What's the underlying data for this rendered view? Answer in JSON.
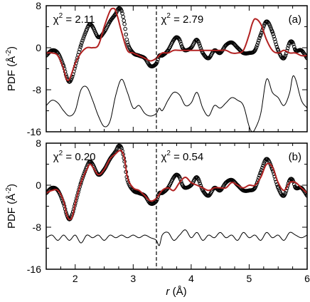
{
  "chart_data": [
    {
      "type": "line",
      "panel_label": "(a)",
      "xlabel": "r (Å)",
      "xlabel_italic": "r",
      "xlabel_unit": "(Å)",
      "ylabel": "PDF (Å⁻²)",
      "ylabel_main": "PDF (Å",
      "ylabel_sup": "-2",
      "ylabel_end": ")",
      "xlim": [
        1.5,
        6.0
      ],
      "ylim": [
        -16,
        8
      ],
      "xticks": [
        "2",
        "3",
        "4",
        "5",
        "6"
      ],
      "yticks": [
        "8",
        "0",
        "-8",
        "-16"
      ],
      "divider_x": 3.4,
      "annotations": [
        {
          "chi_label": "χ",
          "sup": "2",
          "value": " = 2.11",
          "x": 1.62
        },
        {
          "chi_label": "χ",
          "sup": "2",
          "value": " = 2.79",
          "x": 3.48
        }
      ],
      "grid": false,
      "series": [
        {
          "role": "data",
          "style": "open-circles",
          "color": "#000000",
          "x": [
            1.5,
            1.6,
            1.7,
            1.8,
            1.85,
            1.9,
            1.95,
            2.0,
            2.1,
            2.2,
            2.25,
            2.3,
            2.4,
            2.5,
            2.6,
            2.7,
            2.75,
            2.8,
            2.85,
            2.9,
            3.0,
            3.1,
            3.2,
            3.3,
            3.4,
            3.45,
            3.5,
            3.6,
            3.7,
            3.75,
            3.8,
            3.85,
            3.9,
            4.0,
            4.1,
            4.2,
            4.3,
            4.4,
            4.5,
            4.6,
            4.7,
            4.8,
            4.9,
            5.0,
            5.1,
            5.2,
            5.3,
            5.4,
            5.5,
            5.6,
            5.7,
            5.75,
            5.8,
            5.9,
            6.0
          ],
          "y": [
            -1.5,
            -0.5,
            -1.0,
            -3.5,
            -5.5,
            -6.5,
            -5.5,
            -3.5,
            0.5,
            3.5,
            4.5,
            4.0,
            2.0,
            3.0,
            5.0,
            6.5,
            7.5,
            7.0,
            4.5,
            1.0,
            -1.0,
            -1.5,
            -2.0,
            -3.5,
            -3.0,
            -1.5,
            -1.5,
            -0.5,
            1.5,
            2.0,
            1.5,
            0.0,
            -0.5,
            0.0,
            1.5,
            -1.0,
            -2.0,
            -0.5,
            -1.0,
            0.5,
            1.0,
            0.0,
            -1.0,
            -1.0,
            -0.5,
            2.5,
            5.0,
            3.0,
            -0.5,
            -2.0,
            1.0,
            1.0,
            -0.5,
            -0.5,
            -2.0
          ]
        },
        {
          "role": "fit",
          "style": "line",
          "color": "#b22222",
          "x": [
            1.5,
            1.6,
            1.7,
            1.8,
            1.85,
            1.9,
            2.0,
            2.1,
            2.2,
            2.3,
            2.4,
            2.5,
            2.6,
            2.65,
            2.7,
            2.8,
            2.9,
            3.0,
            3.1,
            3.2,
            3.3,
            3.4,
            3.5,
            3.6,
            3.7,
            3.8,
            3.9,
            4.0,
            4.1,
            4.2,
            4.3,
            4.4,
            4.5,
            4.6,
            4.7,
            4.8,
            4.9,
            5.0,
            5.05,
            5.1,
            5.2,
            5.3,
            5.4,
            5.5,
            5.6,
            5.7,
            5.8,
            5.9,
            6.0
          ],
          "y": [
            -1.0,
            -1.0,
            -1.5,
            -4.0,
            -6.0,
            -6.0,
            -3.0,
            -1.0,
            0.0,
            0.0,
            0.5,
            4.0,
            7.0,
            7.5,
            7.0,
            3.0,
            -0.5,
            -1.0,
            -1.5,
            -2.0,
            -2.5,
            -2.0,
            -1.0,
            -1.0,
            -0.5,
            -0.5,
            -0.5,
            -0.5,
            -0.5,
            -0.5,
            -0.5,
            -0.5,
            -0.5,
            -0.5,
            -1.0,
            -1.0,
            -0.5,
            2.5,
            4.5,
            5.5,
            4.5,
            1.5,
            -0.5,
            -1.0,
            -0.5,
            -1.0,
            -1.0,
            -1.5,
            -1.5
          ]
        },
        {
          "role": "difference",
          "style": "line",
          "color": "#000000",
          "x": [
            1.5,
            1.6,
            1.7,
            1.8,
            1.9,
            2.0,
            2.1,
            2.2,
            2.3,
            2.4,
            2.5,
            2.6,
            2.7,
            2.8,
            2.9,
            3.0,
            3.1,
            3.2,
            3.3,
            3.4,
            3.45,
            3.5,
            3.6,
            3.7,
            3.8,
            3.9,
            4.0,
            4.1,
            4.2,
            4.3,
            4.4,
            4.5,
            4.6,
            4.7,
            4.8,
            4.9,
            5.0,
            5.05,
            5.1,
            5.2,
            5.3,
            5.4,
            5.5,
            5.6,
            5.7,
            5.75,
            5.8,
            5.9,
            6.0
          ],
          "y": [
            -11.0,
            -10.0,
            -10.5,
            -12.0,
            -13.0,
            -12.0,
            -8.0,
            -7.5,
            -10.0,
            -13.0,
            -15.0,
            -14.0,
            -9.0,
            -6.0,
            -8.5,
            -11.5,
            -11.0,
            -12.5,
            -13.0,
            -12.5,
            -11.5,
            -12.0,
            -10.0,
            -8.5,
            -9.0,
            -11.0,
            -10.5,
            -8.5,
            -11.5,
            -13.0,
            -11.0,
            -11.5,
            -10.5,
            -9.5,
            -10.0,
            -11.0,
            -15.0,
            -16.0,
            -15.5,
            -12.5,
            -6.0,
            -8.5,
            -9.5,
            -11.0,
            -8.5,
            -5.5,
            -6.0,
            -10.0,
            -11.5
          ]
        }
      ]
    },
    {
      "type": "line",
      "panel_label": "(b)",
      "xlabel": "r (Å)",
      "ylabel": "PDF (Å⁻²)",
      "ylabel_main": "PDF (Å",
      "ylabel_sup": "-2",
      "ylabel_end": ")",
      "xlim": [
        1.5,
        6.0
      ],
      "ylim": [
        -16,
        8
      ],
      "xticks": [
        "2",
        "3",
        "4",
        "5",
        "6"
      ],
      "yticks": [
        "8",
        "0",
        "-8",
        "-16"
      ],
      "divider_x": 3.4,
      "annotations": [
        {
          "chi_label": "χ",
          "sup": "2",
          "value": " = 0.20",
          "x": 1.62
        },
        {
          "chi_label": "χ",
          "sup": "2",
          "value": " = 0.54",
          "x": 3.48
        }
      ],
      "grid": false,
      "series": [
        {
          "role": "data",
          "style": "open-circles",
          "color": "#000000",
          "x": [
            1.5,
            1.6,
            1.7,
            1.8,
            1.85,
            1.9,
            1.95,
            2.0,
            2.1,
            2.2,
            2.25,
            2.3,
            2.4,
            2.5,
            2.6,
            2.7,
            2.75,
            2.8,
            2.85,
            2.9,
            3.0,
            3.1,
            3.2,
            3.3,
            3.4,
            3.45,
            3.5,
            3.6,
            3.7,
            3.75,
            3.8,
            3.85,
            3.9,
            4.0,
            4.1,
            4.2,
            4.3,
            4.4,
            4.5,
            4.6,
            4.7,
            4.8,
            4.9,
            5.0,
            5.1,
            5.2,
            5.3,
            5.4,
            5.5,
            5.6,
            5.7,
            5.75,
            5.8,
            5.9,
            6.0
          ],
          "y": [
            -1.5,
            -0.5,
            -1.0,
            -3.5,
            -5.5,
            -6.5,
            -5.5,
            -3.5,
            0.5,
            3.5,
            4.5,
            4.0,
            2.0,
            3.0,
            5.0,
            6.5,
            7.5,
            7.0,
            4.5,
            1.0,
            -1.0,
            -1.5,
            -2.0,
            -3.5,
            -3.0,
            -1.5,
            -1.5,
            -0.5,
            1.5,
            2.0,
            1.5,
            0.0,
            -0.5,
            0.0,
            1.5,
            -1.0,
            -2.0,
            -0.5,
            -1.0,
            0.5,
            1.0,
            0.0,
            -1.0,
            -1.0,
            -0.5,
            2.5,
            5.0,
            3.0,
            -0.5,
            -2.0,
            1.0,
            1.0,
            -0.5,
            -0.5,
            -2.0
          ]
        },
        {
          "role": "fit",
          "style": "line",
          "color": "#b22222",
          "x": [
            1.5,
            1.6,
            1.7,
            1.8,
            1.85,
            1.9,
            1.95,
            2.0,
            2.1,
            2.2,
            2.25,
            2.3,
            2.4,
            2.5,
            2.6,
            2.7,
            2.75,
            2.8,
            2.85,
            2.9,
            3.0,
            3.1,
            3.2,
            3.3,
            3.4,
            3.5,
            3.6,
            3.7,
            3.8,
            3.9,
            4.0,
            4.1,
            4.2,
            4.3,
            4.4,
            4.5,
            4.6,
            4.7,
            4.8,
            4.9,
            5.0,
            5.1,
            5.2,
            5.3,
            5.4,
            5.5,
            5.6,
            5.7,
            5.8,
            5.9,
            6.0
          ],
          "y": [
            -1.5,
            -1.0,
            -1.0,
            -3.0,
            -5.5,
            -6.5,
            -6.0,
            -3.5,
            0.5,
            3.0,
            4.0,
            3.5,
            2.0,
            3.0,
            5.0,
            6.0,
            6.5,
            6.5,
            5.0,
            1.5,
            -0.5,
            -1.0,
            -2.0,
            -3.0,
            -2.5,
            -1.0,
            -0.5,
            -1.0,
            0.5,
            1.5,
            0.5,
            0.0,
            -0.5,
            -1.0,
            -0.5,
            -0.5,
            -0.5,
            0.5,
            0.0,
            -0.5,
            0.0,
            0.0,
            1.5,
            4.0,
            3.5,
            0.5,
            -1.0,
            0.5,
            0.5,
            -0.5,
            -1.5
          ]
        },
        {
          "role": "difference",
          "style": "line",
          "color": "#000000",
          "x": [
            1.5,
            1.6,
            1.7,
            1.8,
            1.9,
            2.0,
            2.1,
            2.2,
            2.3,
            2.4,
            2.5,
            2.6,
            2.7,
            2.8,
            2.9,
            3.0,
            3.1,
            3.2,
            3.3,
            3.4,
            3.45,
            3.5,
            3.6,
            3.7,
            3.8,
            3.9,
            4.0,
            4.1,
            4.2,
            4.3,
            4.4,
            4.5,
            4.6,
            4.7,
            4.8,
            4.9,
            5.0,
            5.1,
            5.2,
            5.3,
            5.4,
            5.5,
            5.6,
            5.7,
            5.8,
            5.9,
            6.0
          ],
          "y": [
            -10.0,
            -9.5,
            -10.5,
            -9.5,
            -10.5,
            -9.5,
            -11.0,
            -9.5,
            -10.0,
            -9.5,
            -10.5,
            -9.5,
            -10.0,
            -9.5,
            -10.0,
            -9.5,
            -10.0,
            -9.5,
            -10.0,
            -10.5,
            -11.5,
            -9.5,
            -9.0,
            -10.5,
            -9.5,
            -8.5,
            -10.0,
            -9.0,
            -10.5,
            -9.5,
            -10.0,
            -9.0,
            -10.0,
            -9.5,
            -10.5,
            -9.0,
            -10.0,
            -9.5,
            -10.5,
            -9.0,
            -10.0,
            -9.5,
            -10.5,
            -9.0,
            -9.5,
            -10.0,
            -9.5
          ]
        }
      ]
    }
  ]
}
